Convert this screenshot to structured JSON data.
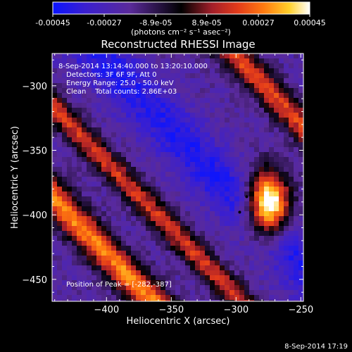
{
  "colorbar": {
    "tick_labels": [
      "-0.00045",
      "-0.00027",
      "-8.9e-05",
      "8.9e-05",
      "0.00027",
      "0.00045"
    ],
    "unit_label": "(photons cm⁻² s⁻¹ asec⁻²)",
    "range": [
      -0.00045,
      0.00045
    ],
    "colormap": [
      "#0b14ff",
      "#3a1fd0",
      "#5a2a9a",
      "#000000",
      "#a31f2a",
      "#e33b1a",
      "#ff7a10",
      "#ffd02a",
      "#ffffff"
    ]
  },
  "chart_data": {
    "type": "heatmap",
    "title": "Reconstructed RHESSI Image",
    "xlabel": "Heliocentric X (arcsec)",
    "ylabel": "Heliocentric Y (arcsec)",
    "xlim": [
      -442,
      -248
    ],
    "ylim": [
      -467,
      -275
    ],
    "x_ticks": [
      -400,
      -350,
      -300,
      -250
    ],
    "x_tick_labels": [
      "−400",
      "−350",
      "−300",
      "−250"
    ],
    "y_ticks": [
      -300,
      -350,
      -400,
      -450
    ],
    "y_tick_labels": [
      "−300",
      "−350",
      "−400",
      "−450"
    ],
    "info_lines": [
      " 8-Sep-2014 13:14:40.000 to 13:20:10.000",
      "Detectors: 3F 6F 9F, Att 0",
      "Energy Range: 25.0 - 50.0 keV",
      "Clean    Total counts: 2.86E+03"
    ],
    "peak_label": "Position of Peak = [-282,-387]",
    "peak_position": [
      -282,
      -387
    ]
  },
  "footer": {
    "timestamp": "8-Sep-2014 17:19"
  }
}
